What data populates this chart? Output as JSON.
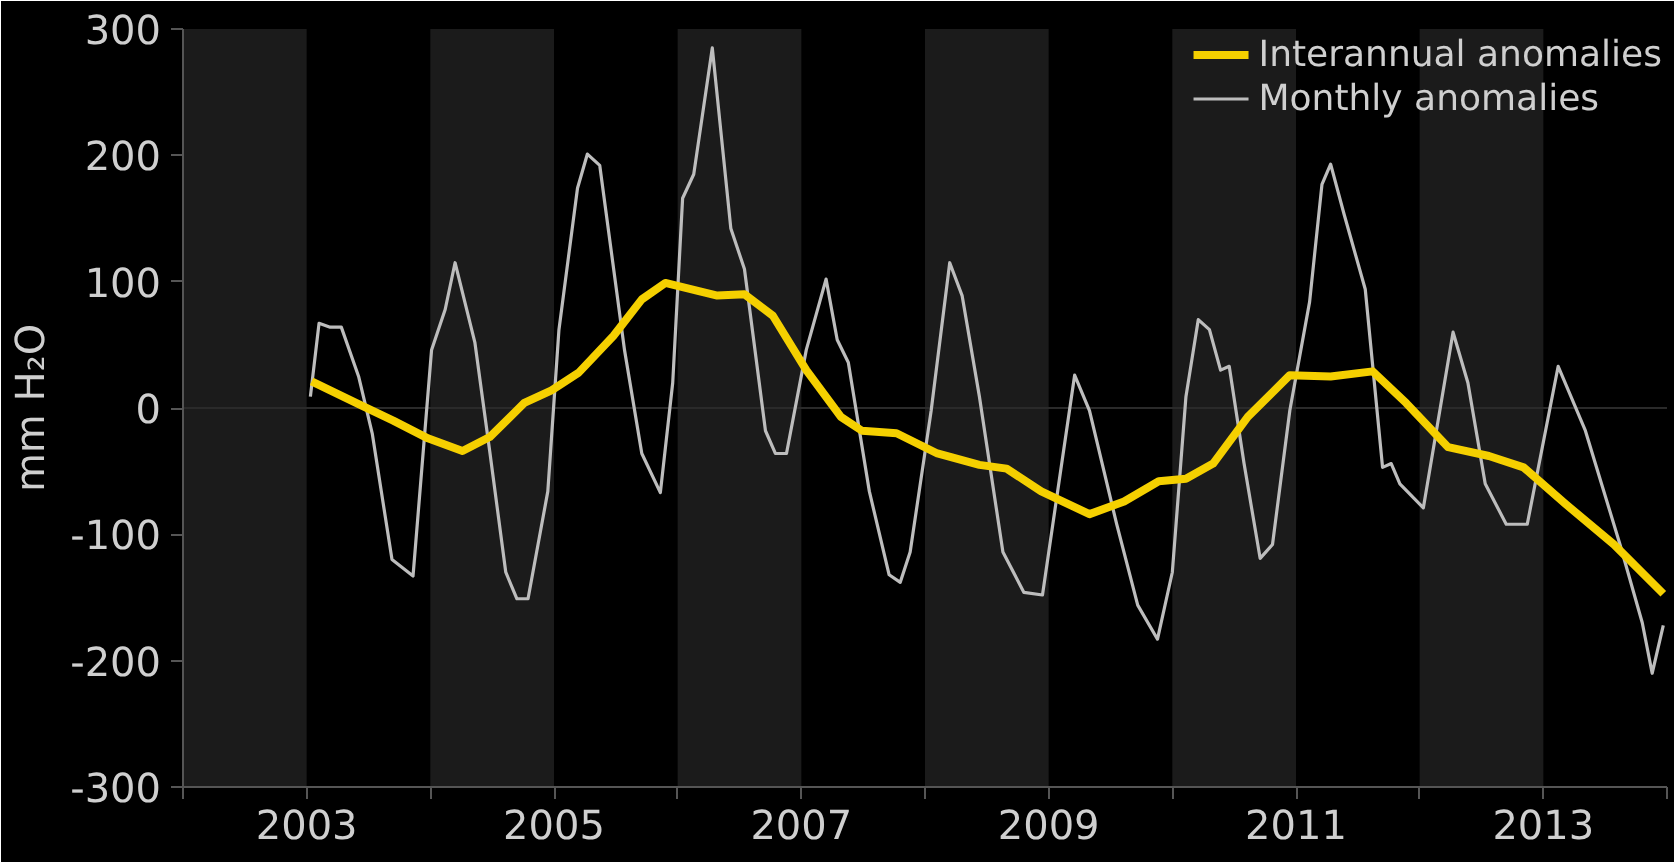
{
  "chart_data": {
    "type": "line",
    "ylabel": "mm H₂O",
    "xlim": [
      2002,
      2014
    ],
    "xticks": [
      {
        "value": 2002,
        "label": null
      },
      2003,
      {
        "value": 2004,
        "label": null
      },
      2005,
      {
        "value": 2006,
        "label": null
      },
      2007,
      {
        "value": 2008,
        "label": null
      },
      2009,
      {
        "value": 2010,
        "label": null
      },
      2011,
      {
        "value": 2012,
        "label": null
      },
      2013,
      {
        "value": 2014,
        "label": null
      }
    ],
    "ylim": [
      -300,
      300
    ],
    "yticks": [
      -300,
      -200,
      -100,
      0,
      100,
      200,
      300
    ],
    "grid": false,
    "legend": "top right",
    "marker": "none",
    "line_style": "solid",
    "ref_lines": [
      {
        "axis": "y",
        "value": 0,
        "color": "#2a2a2a"
      }
    ],
    "bands": [
      {
        "axis": "x",
        "from": 2002,
        "to": 2003,
        "color": "#1b1b1b"
      },
      {
        "axis": "x",
        "from": 2004,
        "to": 2005,
        "color": "#1b1b1b"
      },
      {
        "axis": "x",
        "from": 2006,
        "to": 2007,
        "color": "#1b1b1b"
      },
      {
        "axis": "x",
        "from": 2008,
        "to": 2009,
        "color": "#1b1b1b"
      },
      {
        "axis": "x",
        "from": 2010,
        "to": 2011,
        "color": "#1b1b1b"
      },
      {
        "axis": "x",
        "from": 2012,
        "to": 2013,
        "color": "#1b1b1b"
      }
    ],
    "series": [
      {
        "name": "Monthly anomalies",
        "color": "#bdbdbd",
        "x": [
          2003.03,
          2003.1,
          2003.19,
          2003.28,
          2003.42,
          2003.53,
          2003.69,
          2003.86,
          2004.01,
          2004.12,
          2004.2,
          2004.36,
          2004.48,
          2004.61,
          2004.7,
          2004.79,
          2004.95,
          2005.04,
          2005.19,
          2005.27,
          2005.37,
          2005.57,
          2005.71,
          2005.86,
          2005.96,
          2006.04,
          2006.13,
          2006.28,
          2006.43,
          2006.54,
          2006.71,
          2006.79,
          2006.88,
          2007.04,
          2007.2,
          2007.29,
          2007.38,
          2007.55,
          2007.71,
          2007.8,
          2007.88,
          2008.05,
          2008.2,
          2008.3,
          2008.44,
          2008.63,
          2008.8,
          2008.95,
          2009.21,
          2009.33,
          2009.55,
          2009.72,
          2009.88,
          2010.0,
          2010.11,
          2010.21,
          2010.3,
          2010.39,
          2010.46,
          2010.58,
          2010.71,
          2010.81,
          2010.95,
          2011.11,
          2011.21,
          2011.28,
          2011.39,
          2011.56,
          2011.7,
          2011.77,
          2011.84,
          2012.03,
          2012.27,
          2012.39,
          2012.53,
          2012.7,
          2012.87,
          2013.12,
          2013.34,
          2013.62,
          2013.8,
          2013.88,
          2013.97
        ],
        "values": [
          9,
          67,
          64,
          64,
          25,
          -20,
          -120,
          -133,
          46,
          78,
          115,
          52,
          -34,
          -130,
          -151,
          -151,
          -66,
          62,
          174,
          201,
          192,
          46,
          -36,
          -67,
          20,
          166,
          185,
          285,
          142,
          110,
          -18,
          -36,
          -36,
          46,
          102,
          54,
          36,
          -66,
          -132,
          -138,
          -114,
          -2,
          115,
          89,
          9,
          -114,
          -146,
          -148,
          26,
          -2,
          -92,
          -156,
          -183,
          -130,
          9,
          70,
          62,
          30,
          33,
          -44,
          -119,
          -108,
          -2,
          84,
          177,
          193,
          153,
          94,
          -47,
          -44,
          -60,
          -79,
          60,
          20,
          -60,
          -92,
          -92,
          33,
          -18,
          -108,
          -170,
          -210,
          -172
        ]
      },
      {
        "name": "Interannual anomalies",
        "color": "#f5d000",
        "x": [
          2003.04,
          2003.42,
          2003.7,
          2003.98,
          2004.26,
          2004.48,
          2004.76,
          2004.98,
          2005.2,
          2005.48,
          2005.71,
          2005.9,
          2006.32,
          2006.54,
          2006.77,
          2007.04,
          2007.32,
          2007.49,
          2007.77,
          2008.1,
          2008.44,
          2008.66,
          2008.94,
          2009.33,
          2009.61,
          2009.89,
          2010.11,
          2010.33,
          2010.61,
          2010.95,
          2011.28,
          2011.62,
          2011.89,
          2012.23,
          2012.56,
          2012.84,
          2013.18,
          2013.57,
          2013.97
        ],
        "values": [
          21,
          3,
          -10,
          -24,
          -34,
          -23,
          4,
          14,
          28,
          57,
          86,
          99,
          89,
          90,
          73,
          30,
          -7,
          -18,
          -20,
          -36,
          -45,
          -48,
          -66,
          -84,
          -74,
          -58,
          -56,
          -44,
          -7,
          26,
          25,
          29,
          4,
          -31,
          -38,
          -47,
          -76,
          -108,
          -147
        ]
      }
    ]
  }
}
